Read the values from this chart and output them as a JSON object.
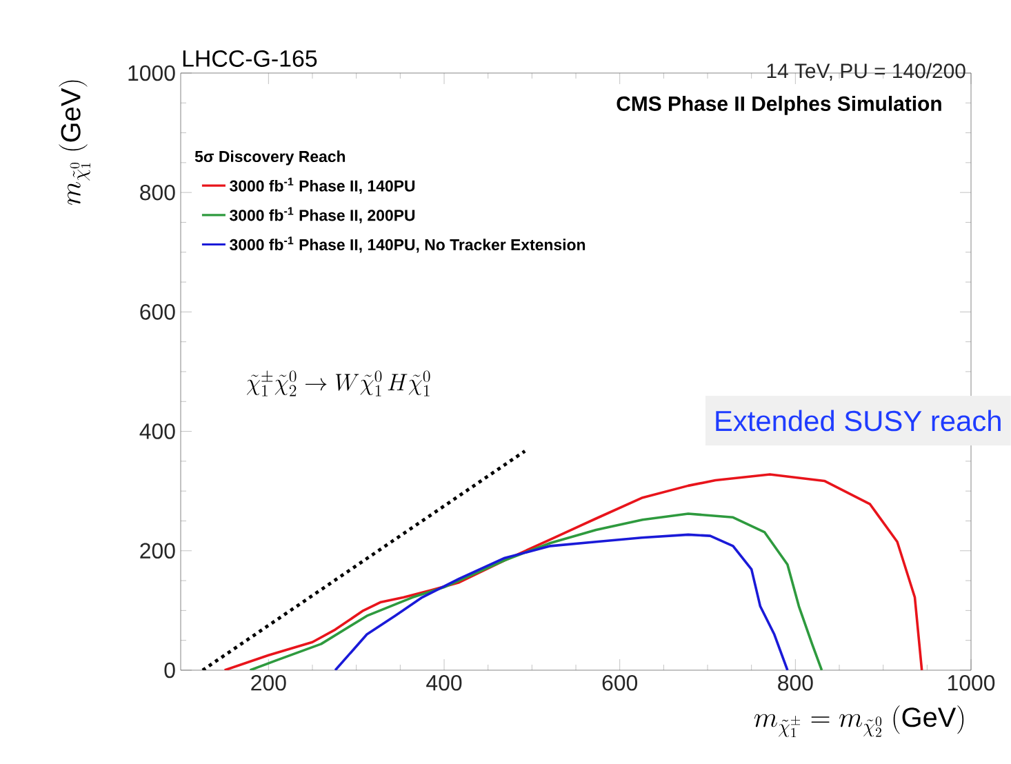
{
  "chart_data": {
    "type": "line",
    "title": "CMS Phase II Delphes Simulation",
    "subtitle": "14 TeV, PU = 140/200",
    "xlabel": "m_{\\tilde{\\chi}^{\\pm}_{1}} = m_{\\tilde{\\chi}^{0}_{2}}\\ (\\mathrm{GeV})",
    "ylabel": "m_{\\tilde{\\chi}^{0}_{1}}\\ (\\mathrm{GeV})",
    "legend_title": "5σ Discovery Reach",
    "annotations": [
      "LHCC-G-165",
      "Extended SUSY reach",
      "\\tilde{\\chi}^{\\pm}_{1}\\tilde{\\chi}^{0}_{2} \\rightarrow W\\tilde{\\chi}^{0}_{1}\\, H\\tilde{\\chi}^{0}_{1}"
    ],
    "xlim": [
      100,
      1000
    ],
    "ylim": [
      0,
      1000
    ],
    "xticks": [
      200,
      400,
      600,
      800,
      1000
    ],
    "yticks": [
      0,
      200,
      400,
      600,
      800,
      1000
    ],
    "legend": "top left",
    "series": [
      {
        "name": "3000 fb$^{-1}$ Phase II, 140PU",
        "color": "#e8141b",
        "x": [
          150,
          200,
          250,
          276,
          307,
          328,
          354,
          385,
          417,
          469,
          521,
          573,
          626,
          678,
          709,
          771,
          833,
          885,
          916,
          936,
          944
        ],
        "values": [
          0,
          25,
          47,
          68,
          99,
          114,
          122,
          134,
          147,
          184,
          219,
          254,
          289,
          309,
          318,
          328,
          317,
          278,
          215,
          122,
          0
        ]
      },
      {
        "name": "3000 fb$^{-1}$ Phase II, 200PU",
        "color": "#2e9a3e",
        "x": [
          179,
          208,
          260,
          312,
          364,
          400,
          469,
          521,
          573,
          626,
          678,
          729,
          765,
          791,
          804,
          819,
          830
        ],
        "values": [
          0,
          16,
          44,
          91,
          122,
          139,
          184,
          213,
          235,
          252,
          262,
          256,
          231,
          177,
          107,
          44,
          0
        ]
      },
      {
        "name": "3000 fb$^{-1}$ Phase II, 140PU, No Tracker Extension",
        "color": "#1a1ad8",
        "x": [
          276,
          312,
          344,
          375,
          417,
          469,
          521,
          573,
          625,
          678,
          703,
          729,
          750,
          760,
          776,
          791
        ],
        "values": [
          0,
          60,
          91,
          122,
          153,
          188,
          208,
          215,
          222,
          227,
          225,
          208,
          169,
          107,
          60,
          0
        ]
      },
      {
        "color": "#000000",
        "line_style": "dotted",
        "x": [
          125,
          492
        ],
        "values": [
          0,
          367
        ]
      }
    ]
  }
}
